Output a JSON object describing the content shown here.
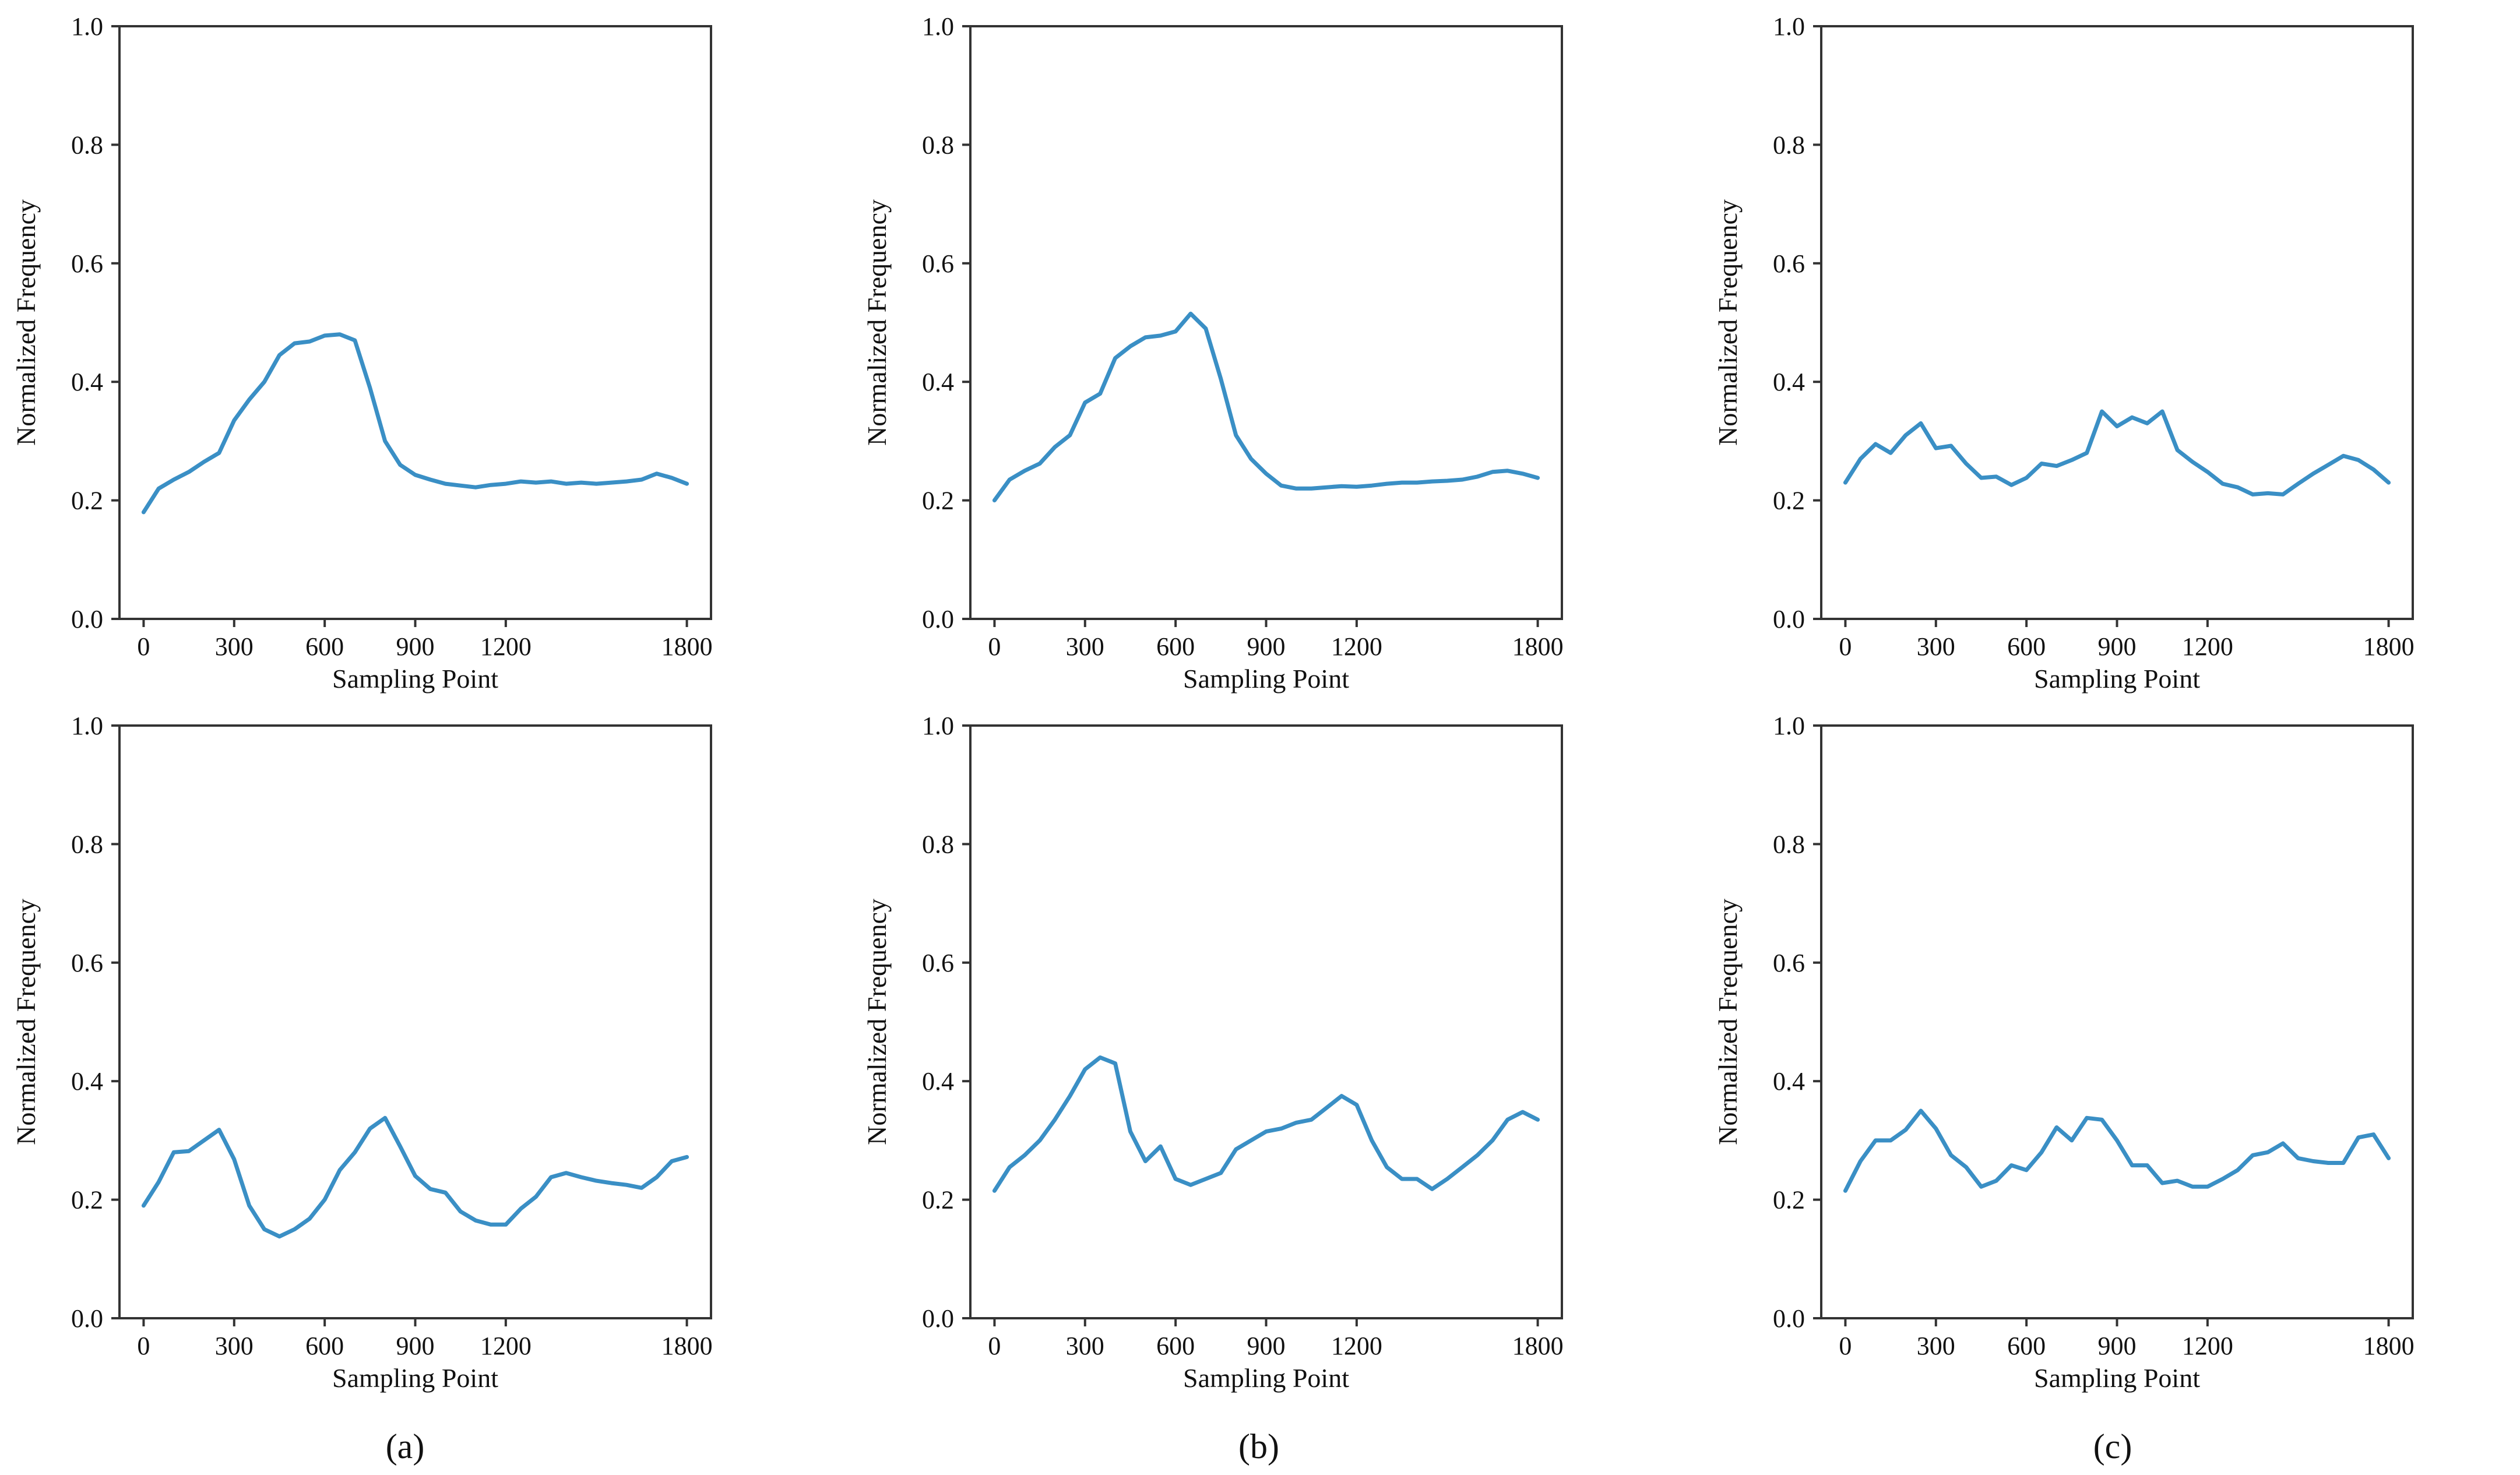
{
  "chart_data": [
    {
      "type": "line",
      "column": 0,
      "row": 0,
      "xlabel": "Sampling Point",
      "ylabel": "Normalized Frequency",
      "xlim": [
        -80,
        1880
      ],
      "ylim": [
        0,
        1
      ],
      "xticks": [
        0,
        300,
        600,
        900,
        1200,
        1800
      ],
      "xtick_labels": [
        "0",
        "300",
        "600",
        "900",
        "1200",
        "1800"
      ],
      "yticks": [
        0.0,
        0.2,
        0.4,
        0.6,
        0.8,
        1.0
      ],
      "ytick_labels": [
        "0.0",
        "0.2",
        "0.4",
        "0.6",
        "0.8",
        "1.0"
      ],
      "series": [
        {
          "color": "#3a8fc5",
          "x": [
            0,
            50,
            100,
            150,
            200,
            250,
            300,
            350,
            400,
            450,
            500,
            550,
            600,
            650,
            700,
            750,
            800,
            850,
            900,
            950,
            1000,
            1050,
            1100,
            1150,
            1200,
            1250,
            1300,
            1350,
            1400,
            1450,
            1500,
            1550,
            1600,
            1650,
            1700,
            1750,
            1800
          ],
          "y": [
            0.18,
            0.22,
            0.235,
            0.248,
            0.265,
            0.28,
            0.335,
            0.37,
            0.4,
            0.445,
            0.465,
            0.468,
            0.478,
            0.48,
            0.47,
            0.39,
            0.3,
            0.26,
            0.243,
            0.235,
            0.228,
            0.225,
            0.222,
            0.226,
            0.228,
            0.232,
            0.23,
            0.232,
            0.228,
            0.23,
            0.228,
            0.23,
            0.232,
            0.235,
            0.245,
            0.238,
            0.228
          ]
        }
      ]
    },
    {
      "type": "line",
      "column": 1,
      "row": 0,
      "xlabel": "Sampling Point",
      "ylabel": "Normalized Frequency",
      "xlim": [
        -80,
        1880
      ],
      "ylim": [
        0,
        1
      ],
      "xticks": [
        0,
        300,
        600,
        900,
        1200,
        1800
      ],
      "xtick_labels": [
        "0",
        "300",
        "600",
        "900",
        "1200",
        "1800"
      ],
      "yticks": [
        0.0,
        0.2,
        0.4,
        0.6,
        0.8,
        1.0
      ],
      "ytick_labels": [
        "0.0",
        "0.2",
        "0.4",
        "0.6",
        "0.8",
        "1.0"
      ],
      "series": [
        {
          "color": "#3a8fc5",
          "x": [
            0,
            50,
            100,
            150,
            200,
            250,
            300,
            350,
            400,
            450,
            500,
            550,
            600,
            650,
            700,
            750,
            800,
            850,
            900,
            950,
            1000,
            1050,
            1100,
            1150,
            1200,
            1250,
            1300,
            1350,
            1400,
            1450,
            1500,
            1550,
            1600,
            1650,
            1700,
            1750,
            1800
          ],
          "y": [
            0.2,
            0.235,
            0.25,
            0.262,
            0.29,
            0.31,
            0.365,
            0.38,
            0.44,
            0.46,
            0.475,
            0.478,
            0.485,
            0.515,
            0.49,
            0.405,
            0.31,
            0.27,
            0.245,
            0.225,
            0.22,
            0.22,
            0.222,
            0.224,
            0.223,
            0.225,
            0.228,
            0.23,
            0.23,
            0.232,
            0.233,
            0.235,
            0.24,
            0.248,
            0.25,
            0.245,
            0.238
          ]
        }
      ]
    },
    {
      "type": "line",
      "column": 2,
      "row": 0,
      "xlabel": "Sampling Point",
      "ylabel": "Normalized Frequency",
      "xlim": [
        -80,
        1880
      ],
      "ylim": [
        0,
        1
      ],
      "xticks": [
        0,
        300,
        600,
        900,
        1200,
        1800
      ],
      "xtick_labels": [
        "0",
        "300",
        "600",
        "900",
        "1200",
        "1800"
      ],
      "yticks": [
        0.0,
        0.2,
        0.4,
        0.6,
        0.8,
        1.0
      ],
      "ytick_labels": [
        "0.0",
        "0.2",
        "0.4",
        "0.6",
        "0.8",
        "1.0"
      ],
      "series": [
        {
          "color": "#3a8fc5",
          "x": [
            0,
            50,
            100,
            150,
            200,
            250,
            300,
            350,
            400,
            450,
            500,
            550,
            600,
            650,
            700,
            750,
            800,
            850,
            900,
            950,
            1000,
            1050,
            1100,
            1150,
            1200,
            1250,
            1300,
            1350,
            1400,
            1450,
            1500,
            1550,
            1600,
            1650,
            1700,
            1750,
            1800
          ],
          "y": [
            0.23,
            0.27,
            0.295,
            0.28,
            0.31,
            0.33,
            0.288,
            0.292,
            0.262,
            0.238,
            0.24,
            0.226,
            0.238,
            0.262,
            0.258,
            0.268,
            0.28,
            0.35,
            0.325,
            0.34,
            0.33,
            0.35,
            0.285,
            0.265,
            0.248,
            0.228,
            0.222,
            0.21,
            0.212,
            0.21,
            0.228,
            0.245,
            0.26,
            0.275,
            0.268,
            0.252,
            0.23
          ]
        }
      ]
    },
    {
      "type": "line",
      "column": 0,
      "row": 1,
      "xlabel": "Sampling Point",
      "ylabel": "Normalized Frequency",
      "xlim": [
        -80,
        1880
      ],
      "ylim": [
        0,
        1
      ],
      "xticks": [
        0,
        300,
        600,
        900,
        1200,
        1800
      ],
      "xtick_labels": [
        "0",
        "300",
        "600",
        "900",
        "1200",
        "1800"
      ],
      "yticks": [
        0.0,
        0.2,
        0.4,
        0.6,
        0.8,
        1.0
      ],
      "ytick_labels": [
        "0.0",
        "0.2",
        "0.4",
        "0.6",
        "0.8",
        "1.0"
      ],
      "series": [
        {
          "color": "#3a8fc5",
          "x": [
            0,
            50,
            100,
            150,
            200,
            250,
            300,
            350,
            400,
            450,
            500,
            550,
            600,
            650,
            700,
            750,
            800,
            850,
            900,
            950,
            1000,
            1050,
            1100,
            1150,
            1200,
            1250,
            1300,
            1350,
            1400,
            1450,
            1500,
            1550,
            1600,
            1650,
            1700,
            1750,
            1800
          ],
          "y": [
            0.19,
            0.23,
            0.28,
            0.282,
            0.3,
            0.318,
            0.268,
            0.19,
            0.15,
            0.138,
            0.15,
            0.168,
            0.2,
            0.25,
            0.28,
            0.32,
            0.338,
            0.29,
            0.24,
            0.218,
            0.212,
            0.18,
            0.165,
            0.158,
            0.158,
            0.185,
            0.205,
            0.238,
            0.245,
            0.238,
            0.232,
            0.228,
            0.225,
            0.22,
            0.238,
            0.265,
            0.272
          ]
        }
      ]
    },
    {
      "type": "line",
      "column": 1,
      "row": 1,
      "xlabel": "Sampling Point",
      "ylabel": "Normalized Frequency",
      "xlim": [
        -80,
        1880
      ],
      "ylim": [
        0,
        1
      ],
      "xticks": [
        0,
        300,
        600,
        900,
        1200,
        1800
      ],
      "xtick_labels": [
        "0",
        "300",
        "600",
        "900",
        "1200",
        "1800"
      ],
      "yticks": [
        0.0,
        0.2,
        0.4,
        0.6,
        0.8,
        1.0
      ],
      "ytick_labels": [
        "0.0",
        "0.2",
        "0.4",
        "0.6",
        "0.8",
        "1.0"
      ],
      "series": [
        {
          "color": "#3a8fc5",
          "x": [
            0,
            50,
            100,
            150,
            200,
            250,
            300,
            350,
            400,
            450,
            500,
            550,
            600,
            650,
            700,
            750,
            800,
            850,
            900,
            950,
            1000,
            1050,
            1100,
            1150,
            1200,
            1250,
            1300,
            1350,
            1400,
            1450,
            1500,
            1550,
            1600,
            1650,
            1700,
            1750,
            1800
          ],
          "y": [
            0.215,
            0.255,
            0.275,
            0.3,
            0.335,
            0.375,
            0.42,
            0.44,
            0.43,
            0.315,
            0.265,
            0.29,
            0.235,
            0.225,
            0.235,
            0.245,
            0.285,
            0.3,
            0.315,
            0.32,
            0.33,
            0.335,
            0.355,
            0.375,
            0.36,
            0.3,
            0.255,
            0.235,
            0.235,
            0.218,
            0.235,
            0.255,
            0.275,
            0.3,
            0.335,
            0.348,
            0.335
          ]
        }
      ]
    },
    {
      "type": "line",
      "column": 2,
      "row": 1,
      "xlabel": "Sampling Point",
      "ylabel": "Normalized Frequency",
      "xlim": [
        -80,
        1880
      ],
      "ylim": [
        0,
        1
      ],
      "xticks": [
        0,
        300,
        600,
        900,
        1200,
        1800
      ],
      "xtick_labels": [
        "0",
        "300",
        "600",
        "900",
        "1200",
        "1800"
      ],
      "yticks": [
        0.0,
        0.2,
        0.4,
        0.6,
        0.8,
        1.0
      ],
      "ytick_labels": [
        "0.0",
        "0.2",
        "0.4",
        "0.6",
        "0.8",
        "1.0"
      ],
      "series": [
        {
          "color": "#3a8fc5",
          "x": [
            0,
            50,
            100,
            150,
            200,
            250,
            300,
            350,
            400,
            450,
            500,
            550,
            600,
            650,
            700,
            750,
            800,
            850,
            900,
            950,
            1000,
            1050,
            1100,
            1150,
            1200,
            1250,
            1300,
            1350,
            1400,
            1450,
            1500,
            1550,
            1600,
            1650,
            1700,
            1750,
            1800
          ],
          "y": [
            0.215,
            0.265,
            0.3,
            0.3,
            0.318,
            0.35,
            0.32,
            0.275,
            0.255,
            0.222,
            0.232,
            0.258,
            0.25,
            0.28,
            0.322,
            0.3,
            0.338,
            0.335,
            0.3,
            0.258,
            0.258,
            0.228,
            0.232,
            0.222,
            0.222,
            0.235,
            0.25,
            0.275,
            0.28,
            0.295,
            0.27,
            0.265,
            0.262,
            0.262,
            0.305,
            0.31,
            0.27
          ]
        }
      ]
    }
  ],
  "panel_labels": [
    "(a)",
    "(b)",
    "(c)"
  ]
}
